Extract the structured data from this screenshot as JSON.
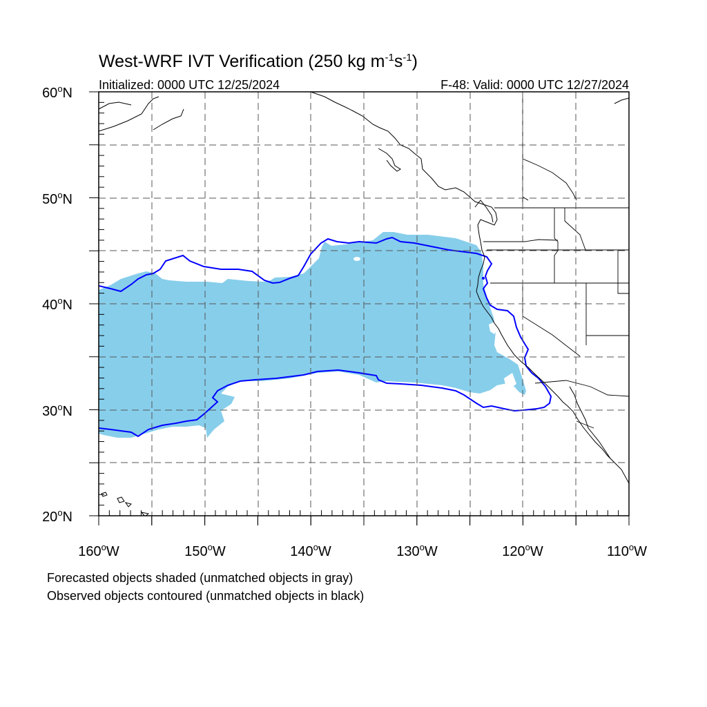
{
  "title": {
    "main": "West-WRF IVT Verification (250 kg m",
    "sup1": "-1",
    "mid": "s",
    "sup2": "-1",
    "end": ")"
  },
  "subtitle": {
    "left": "Initialized: 0000 UTC 12/25/2024",
    "right": "F-48: Valid: 0000 UTC 12/27/2024"
  },
  "axes": {
    "lat_labels": [
      {
        "num": "60",
        "deg": "o",
        "hemi": "N"
      },
      {
        "num": "50",
        "deg": "o",
        "hemi": "N"
      },
      {
        "num": "40",
        "deg": "o",
        "hemi": "N"
      },
      {
        "num": "30",
        "deg": "o",
        "hemi": "N"
      },
      {
        "num": "20",
        "deg": "o",
        "hemi": "N"
      }
    ],
    "lon_labels": [
      {
        "num": "160",
        "deg": "o",
        "hemi": "W"
      },
      {
        "num": "150",
        "deg": "o",
        "hemi": "W"
      },
      {
        "num": "140",
        "deg": "o",
        "hemi": "W"
      },
      {
        "num": "130",
        "deg": "o",
        "hemi": "W"
      },
      {
        "num": "120",
        "deg": "o",
        "hemi": "W"
      },
      {
        "num": "110",
        "deg": "o",
        "hemi": "W"
      }
    ],
    "lat_range": [
      20,
      60
    ],
    "lon_range": [
      -160,
      -110
    ],
    "grid_lat_step": 5,
    "grid_lon_step": 5
  },
  "colors": {
    "forecast_fill": "#87ceeb",
    "observed_contour": "#0000ff",
    "coastline": "#000000",
    "grid": "#555555"
  },
  "legend": {
    "line1": "Forecasted objects shaded (unmatched objects in gray)",
    "line2": "Observed objects contoured (unmatched objects in black)"
  }
}
